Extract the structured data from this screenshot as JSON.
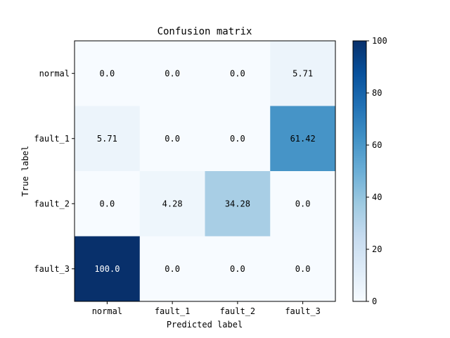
{
  "chart_data": {
    "type": "heatmap",
    "title": "Confusion matrix",
    "xlabel": "Predicted label",
    "ylabel": "True label",
    "x_categories": [
      "normal",
      "fault_1",
      "fault_2",
      "fault_3"
    ],
    "y_categories": [
      "normal",
      "fault_1",
      "fault_2",
      "fault_3"
    ],
    "values": [
      [
        0.0,
        0.0,
        0.0,
        5.71
      ],
      [
        5.71,
        0.0,
        0.0,
        61.42
      ],
      [
        0.0,
        4.28,
        34.28,
        0.0
      ],
      [
        100.0,
        0.0,
        0.0,
        0.0
      ]
    ],
    "value_labels": [
      [
        "0.0",
        "0.0",
        "0.0",
        "5.71"
      ],
      [
        "5.71",
        "0.0",
        "0.0",
        "61.42"
      ],
      [
        "0.0",
        "4.28",
        "34.28",
        "0.0"
      ],
      [
        "100.0",
        "0.0",
        "0.0",
        "0.0"
      ]
    ],
    "colorbar": {
      "range": [
        0,
        100
      ],
      "ticks": [
        "0",
        "20",
        "40",
        "60",
        "80",
        "100"
      ]
    },
    "colormap": "Blues",
    "colors": {
      "low": "#f7fbff",
      "high": "#08306b"
    },
    "grid": false
  }
}
